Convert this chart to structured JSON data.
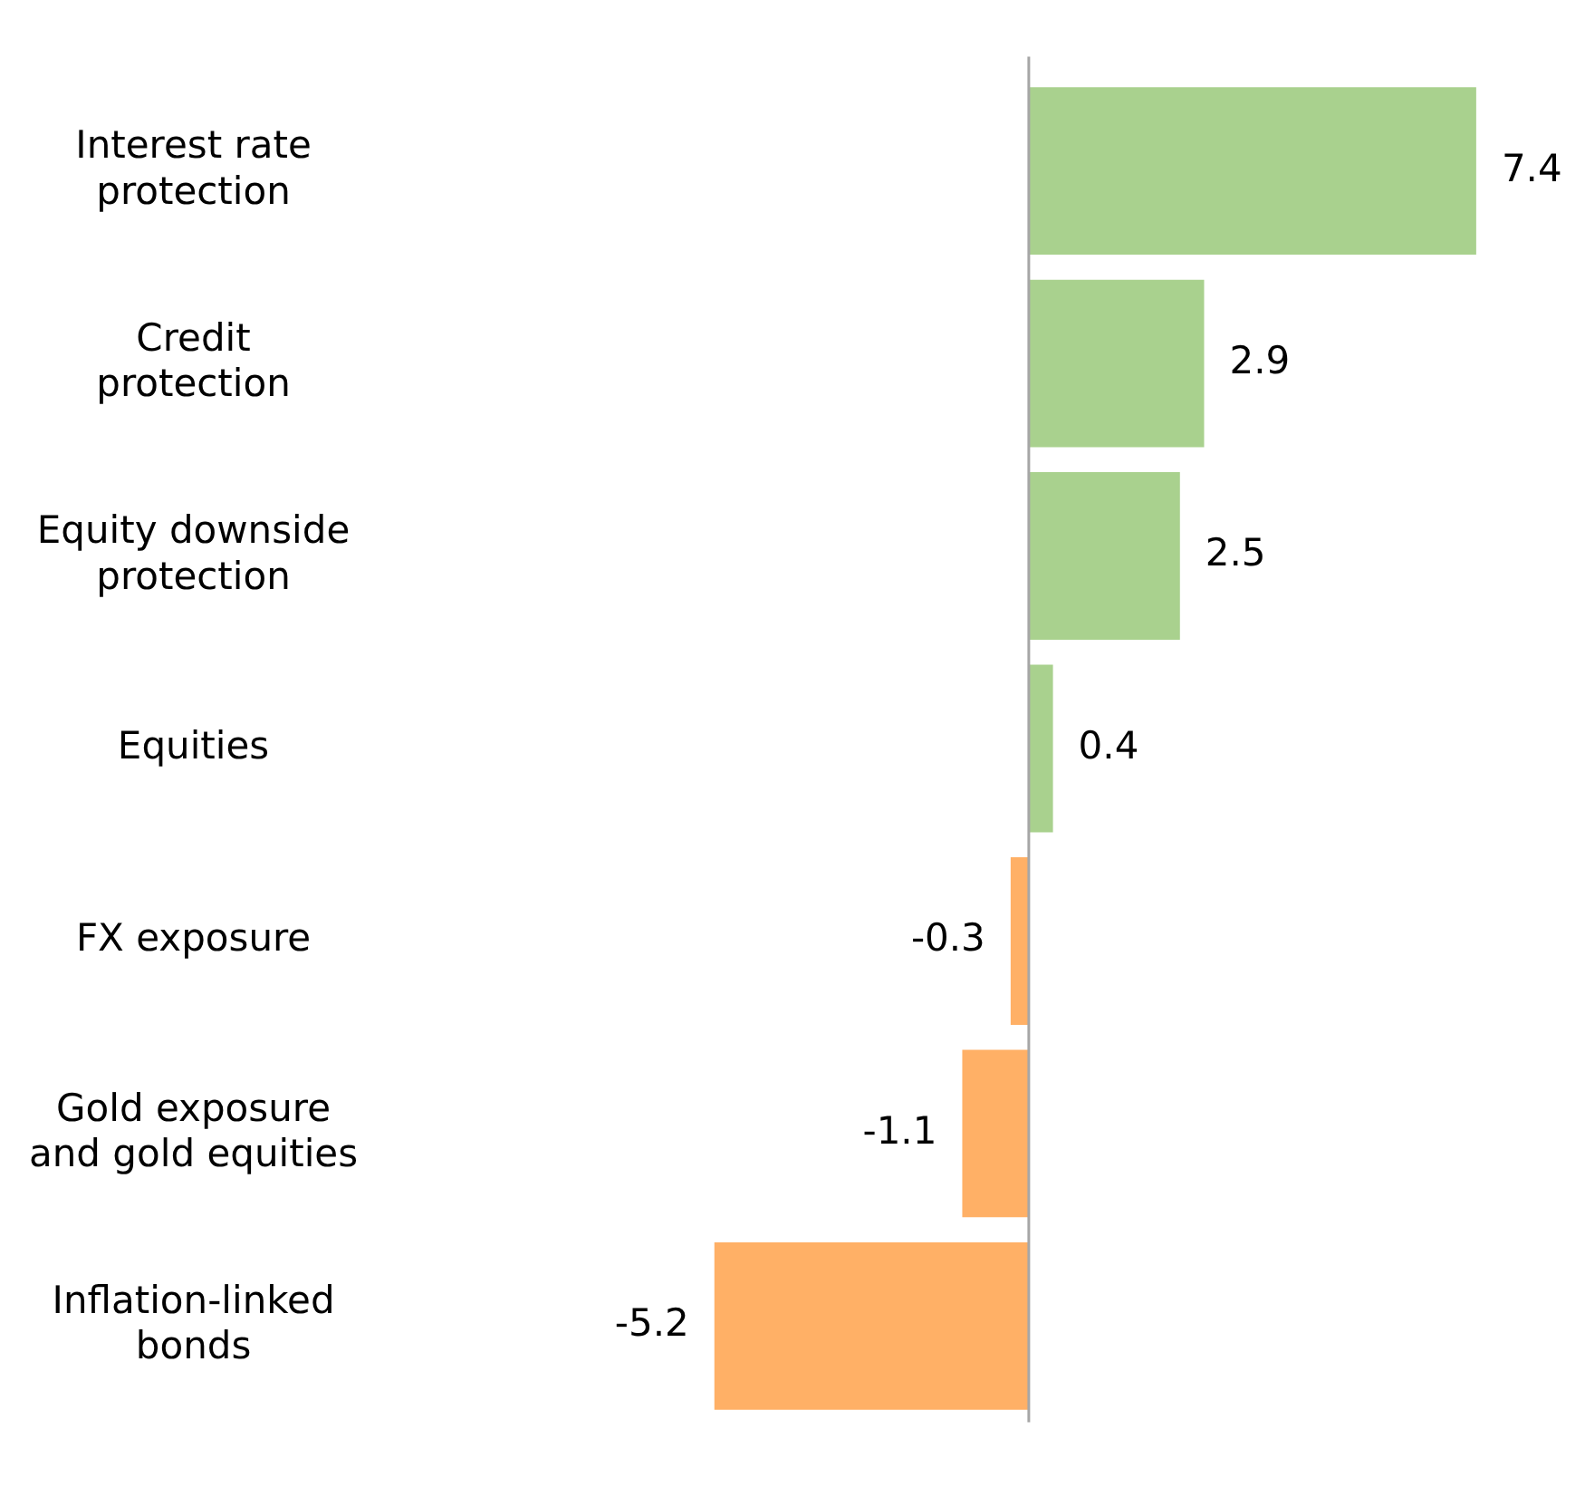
{
  "chart_data": {
    "type": "bar",
    "orientation": "horizontal",
    "categories": [
      "Interest rate protection",
      "Credit protection",
      "Equity downside protection",
      "Equities",
      "FX exposure",
      "Gold exposure and gold equities",
      "Inflation-linked bonds"
    ],
    "values": [
      7.4,
      2.9,
      2.5,
      0.4,
      -0.3,
      -1.1,
      -5.2
    ],
    "colors": [
      "#a9d18e",
      "#a9d18e",
      "#a9d18e",
      "#a9d18e",
      "#ffb066",
      "#ffb066",
      "#ffb066"
    ],
    "data_labels": true,
    "legend": false
  }
}
